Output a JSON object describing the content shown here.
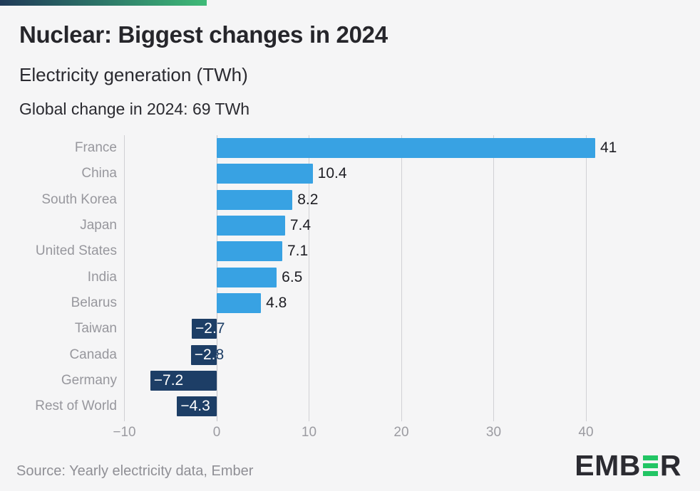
{
  "banner": {
    "gradient_start": "#203a58",
    "gradient_mid": "#2c7468",
    "gradient_end": "#3fbb78"
  },
  "header": {
    "title": "Nuclear: Biggest changes in 2024",
    "subtitle": "Electricity generation (TWh)",
    "annotation": "Global change in 2024: 69 TWh"
  },
  "chart_data": {
    "type": "bar",
    "orientation": "horizontal",
    "title": "Nuclear: Biggest changes in 2024",
    "xlabel": "Electricity generation (TWh)",
    "ylabel": "",
    "categories": [
      "France",
      "China",
      "South Korea",
      "Japan",
      "United States",
      "India",
      "Belarus",
      "Taiwan",
      "Canada",
      "Germany",
      "Rest of World"
    ],
    "values": [
      41,
      10.4,
      8.2,
      7.4,
      7.1,
      6.5,
      4.8,
      -2.7,
      -2.8,
      -7.2,
      -4.3
    ],
    "value_labels": [
      "41",
      "10.4",
      "8.2",
      "7.4",
      "7.1",
      "6.5",
      "4.8",
      "−2.7",
      "−2.8",
      "−7.2",
      "−4.3"
    ],
    "x_ticks": [
      -10,
      0,
      10,
      20,
      30,
      40
    ],
    "x_tick_labels": [
      "−10",
      "0",
      "10",
      "20",
      "30",
      "40"
    ],
    "xlim": [
      -10,
      50
    ],
    "grid": true,
    "legend": false,
    "positive_color": "#38a2e3",
    "negative_color": "#1d3e66"
  },
  "footer": {
    "source": "Source: Yearly electricity data, Ember",
    "logo_prefix": "EMB",
    "logo_suffix": "R",
    "logo_full": "EMBER"
  },
  "colors": {
    "background": "#f5f5f6",
    "grid": "#d0d0d4",
    "category_label": "#97979d",
    "tick_label": "#9b9ba1",
    "value_label": "#1e1e24",
    "title_text": "#26262b",
    "source_text": "#8f8f95",
    "logo_dark": "#2b2b31",
    "logo_green": "#22c564"
  }
}
